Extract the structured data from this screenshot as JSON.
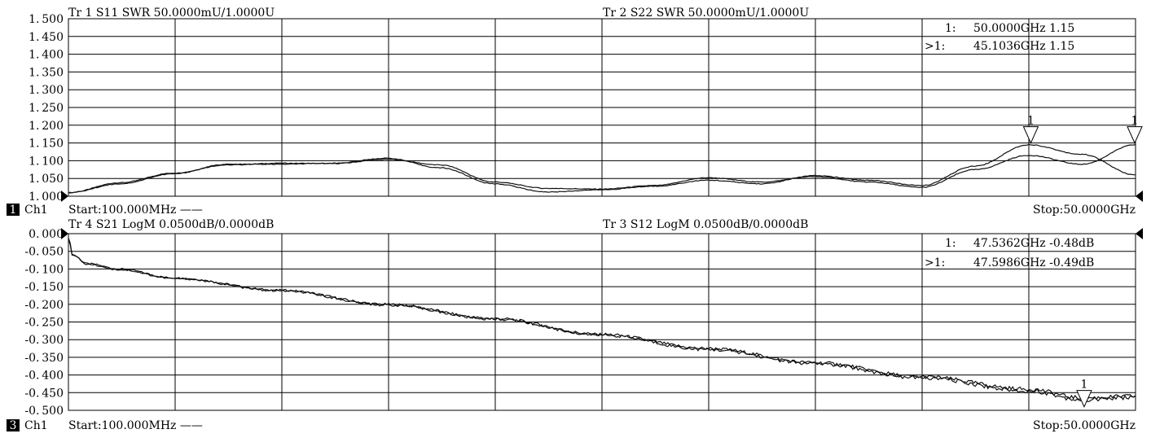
{
  "chart_data": [
    {
      "type": "line",
      "title": "",
      "xlabel": "",
      "ylabel": "",
      "xlim": [
        0.1,
        50.0
      ],
      "ylim": [
        1.0,
        1.5
      ],
      "x_unit": "GHz",
      "grid": true,
      "y_ticks": [
        "1.500",
        "1.450",
        "1.400",
        "1.350",
        "1.300",
        "1.250",
        "1.200",
        "1.150",
        "1.100",
        "1.050",
        "1.000"
      ],
      "trace_labels": [
        {
          "text": "Tr 1  S11 SWR 50.0000mU/1.0000U"
        },
        {
          "text": "Tr 2  S22 SWR 50.0000mU/1.0000U"
        }
      ],
      "marker_readouts": [
        {
          "prefix": "1:",
          "value": "50.0000GHz 1.15"
        },
        {
          "prefix": ">1:",
          "value": "45.1036GHz 1.15"
        }
      ],
      "markers": [
        {
          "label": "1",
          "x": 45.1036,
          "y": 1.15
        },
        {
          "label": "1",
          "x": 50.0,
          "y": 1.15
        }
      ],
      "footer": {
        "badge": "1",
        "channel": "Ch1",
        "start": "Start:100.000MHz ——",
        "stop": "Stop:50.0000GHz"
      },
      "series": [
        {
          "x": [
            0.1,
            2.5,
            5,
            7.5,
            10,
            12.5,
            15,
            17.5,
            20,
            22.5,
            25,
            27.5,
            30,
            32.5,
            35,
            37.5,
            40,
            42.5,
            45,
            47.5,
            50
          ],
          "y": [
            1.01,
            1.038,
            1.065,
            1.088,
            1.093,
            1.092,
            1.104,
            1.088,
            1.04,
            1.022,
            1.02,
            1.03,
            1.052,
            1.04,
            1.055,
            1.04,
            1.025,
            1.075,
            1.115,
            1.09,
            1.145
          ]
        },
        {
          "x": [
            0.1,
            2.5,
            5,
            7.5,
            10,
            12.5,
            15,
            17.5,
            20,
            22.5,
            25,
            27.5,
            30,
            32.5,
            35,
            37.5,
            40,
            42.5,
            45,
            47.5,
            50
          ],
          "y": [
            1.01,
            1.035,
            1.063,
            1.09,
            1.09,
            1.093,
            1.107,
            1.08,
            1.035,
            1.012,
            1.018,
            1.028,
            1.045,
            1.035,
            1.058,
            1.045,
            1.03,
            1.085,
            1.145,
            1.118,
            1.06
          ]
        }
      ]
    },
    {
      "type": "line",
      "title": "",
      "xlabel": "",
      "ylabel": "",
      "xlim": [
        0.1,
        50.0
      ],
      "ylim": [
        -0.5,
        0.0
      ],
      "x_unit": "GHz",
      "grid": true,
      "y_ticks": [
        "0.000",
        "-0.050",
        "-0.100",
        "-0.150",
        "-0.200",
        "-0.250",
        "-0.300",
        "-0.350",
        "-0.400",
        "-0.450",
        "-0.500"
      ],
      "trace_labels": [
        {
          "text": "Tr 4  S21 LogM 0.0500dB/0.0000dB"
        },
        {
          "text": "Tr 3  S12 LogM 0.0500dB/0.0000dB"
        }
      ],
      "marker_readouts": [
        {
          "prefix": "1:",
          "value": "47.5362GHz -0.48dB"
        },
        {
          "prefix": ">1:",
          "value": "47.5986GHz -0.49dB"
        }
      ],
      "markers": [
        {
          "label": "1",
          "x": 47.5986,
          "y": -0.49
        }
      ],
      "footer": {
        "badge": "3",
        "channel": "Ch1",
        "start": "Start:100.000MHz ——",
        "stop": "Stop:50.0000GHz"
      },
      "series": [
        {
          "x": [
            0.1,
            0.3,
            1,
            2.5,
            5,
            10,
            15,
            20,
            25,
            30,
            35,
            40,
            45,
            47.5,
            50
          ],
          "y": [
            -0.01,
            -0.06,
            -0.085,
            -0.1,
            -0.125,
            -0.16,
            -0.2,
            -0.24,
            -0.285,
            -0.325,
            -0.365,
            -0.405,
            -0.44,
            -0.465,
            -0.46
          ]
        },
        {
          "x": [
            0.1,
            0.3,
            1,
            2.5,
            5,
            10,
            15,
            20,
            25,
            30,
            35,
            40,
            45,
            47.5,
            50
          ],
          "y": [
            -0.012,
            -0.062,
            -0.087,
            -0.102,
            -0.127,
            -0.162,
            -0.202,
            -0.242,
            -0.287,
            -0.328,
            -0.368,
            -0.408,
            -0.445,
            -0.47,
            -0.463
          ]
        }
      ]
    }
  ]
}
